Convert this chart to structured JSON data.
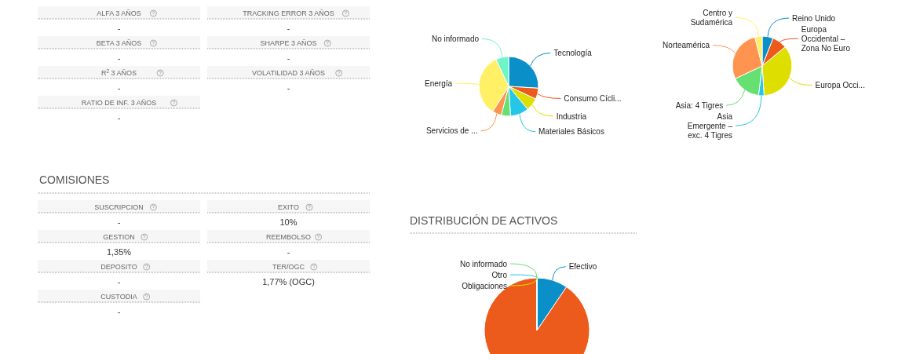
{
  "chart_data": [
    {
      "type": "other",
      "categories": [
        "ALFA 3 AÑOS",
        "TRACKING ERROR 3 AÑOS",
        "BETA 3 AÑOS",
        "SHARPE 3 AÑOS",
        "R$^{2}$ 3 AÑOS",
        "VOLATILIDAD 3 AÑOS",
        "RATIO DE INF. 3 AÑOS"
      ],
      "value_labels": [
        "-",
        "-",
        "-",
        "-",
        "-",
        "-",
        "-"
      ]
    },
    {
      "type": "pie",
      "categories": [
        "Tecnología",
        "Consumo Cícli...",
        "Industria",
        "Materiales Básicos",
        null,
        "Servicios de ...",
        "Energía",
        "No informado"
      ],
      "values": [
        26,
        6,
        7,
        10,
        5,
        5,
        34,
        7
      ],
      "colors": [
        "#0a8fc8",
        "#ec5a1c",
        "#dede00",
        "#26c6e6",
        "#66e070",
        "#ff9450",
        "#fff066",
        "#6ff5c6"
      ]
    },
    {
      "type": "pie",
      "categories": [
        "Reino Unido",
        "Europa Occidental – Zona No Euro",
        "Europa Occi...",
        "Asia Emergente – exc. 4 Tigres",
        "Asia: 4 Tigres",
        "Norteamérica",
        "Centro y Sudamérica"
      ],
      "values": [
        6,
        8,
        35,
        3,
        16,
        28,
        4
      ],
      "colors": [
        "#0a8fc8",
        "#ec5a1c",
        "#dede00",
        "#26c6e6",
        "#66e070",
        "#ff9450",
        "#fff066"
      ]
    },
    {
      "type": "other",
      "title": "COMISIONES",
      "categories": [
        "SUSCRIPCION",
        "EXITO",
        "GESTION",
        "REEMBOLSO",
        "DEPOSITO",
        "TER/OGC",
        "CUSTODIA"
      ],
      "value_labels": [
        "-",
        "10%",
        "1,35%",
        "-",
        "-",
        "1,77% (OGC)",
        "-"
      ]
    },
    {
      "type": "pie",
      "title": "DISTRIBUCIÓN DE ACTIVOS",
      "categories": [
        "Efectivo",
        null,
        "Obligaciones",
        "Otro",
        "No informado"
      ],
      "values": [
        9.5,
        90.5,
        0,
        0,
        0
      ],
      "colors": [
        "#0a8fc8",
        "#ec5a1c",
        "#dede00",
        "#26c6e6",
        "#66e070"
      ]
    }
  ]
}
